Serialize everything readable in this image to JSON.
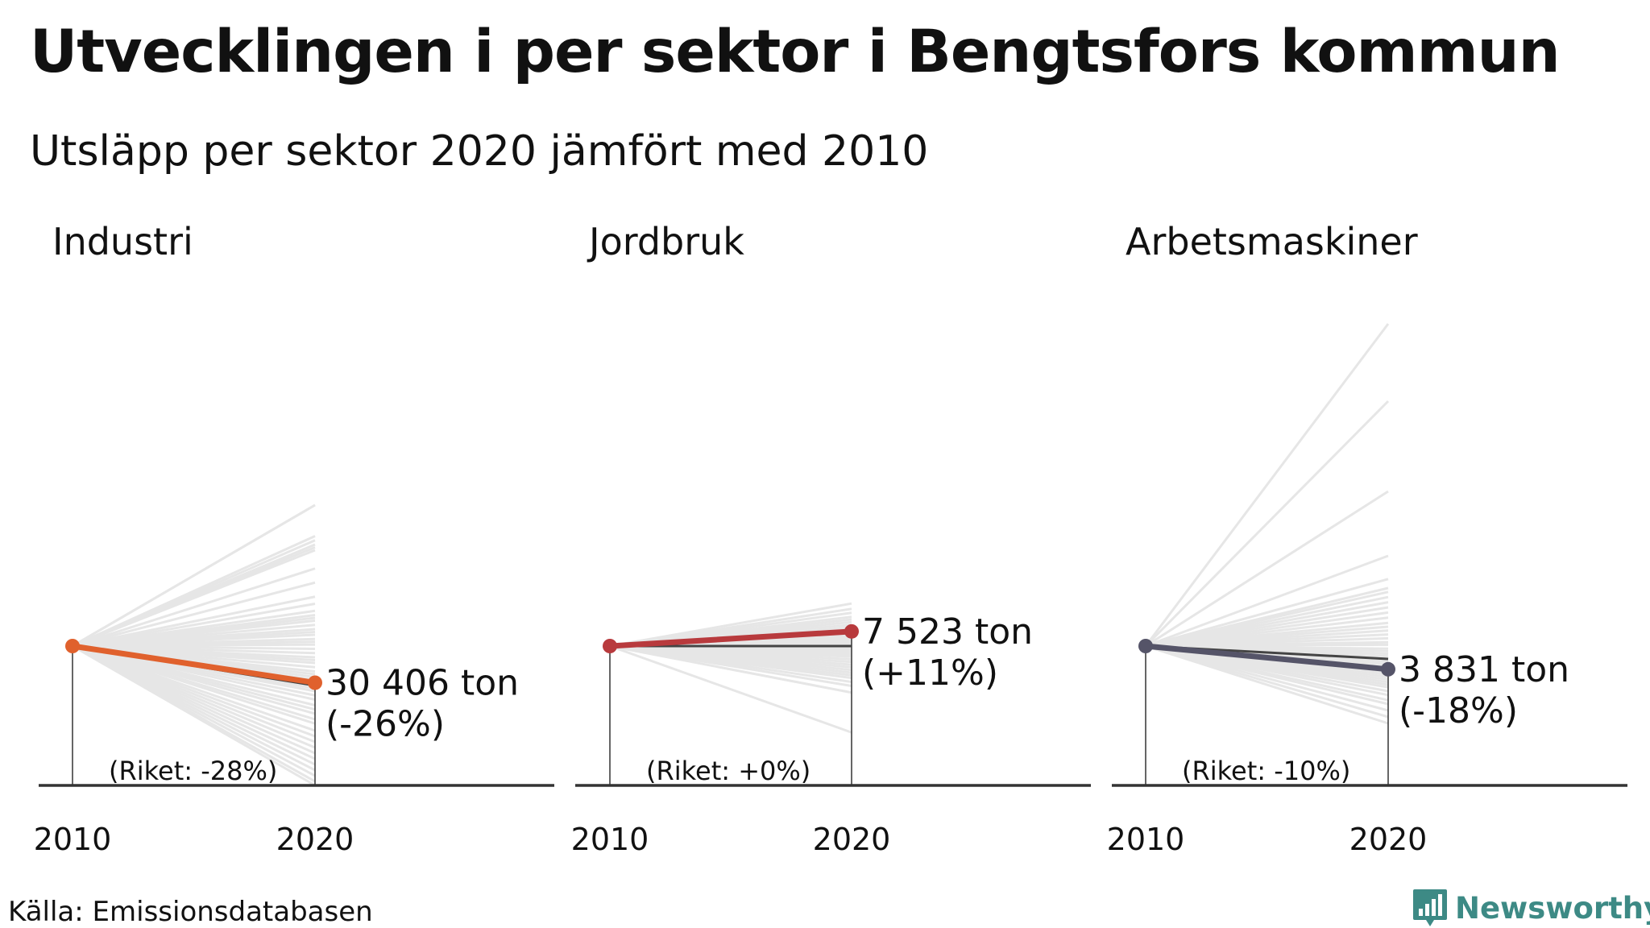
{
  "title": "Utvecklingen i per sektor i Bengtsfors kommun",
  "subtitle": "Utsläpp per sektor 2020 jämfört med 2010",
  "source": "Källa: Emissionsdatabasen",
  "brand": {
    "name": "Newsworthy",
    "color": "#3d8a85",
    "icon": "newsworthy-bar-chart-icon"
  },
  "colors": {
    "background_lines": "#e6e6e6",
    "reference_line": "#444444",
    "axis": "#333333"
  },
  "chart_data": [
    {
      "type": "line",
      "title": "Industri",
      "x": [
        "2010",
        "2020"
      ],
      "highlight": {
        "change_pct": -26,
        "value_label": "30 406 ton",
        "change_label": "(-26%)",
        "color": "#e0612d"
      },
      "national": {
        "change_pct": -28,
        "label": "(Riket: -28%)"
      },
      "other_municipalities_change_pct": [
        100,
        100,
        78,
        75,
        72,
        70,
        68,
        55,
        45,
        35,
        30,
        25,
        22,
        20,
        18,
        15,
        12,
        10,
        8,
        5,
        3,
        1,
        -2,
        -5,
        -8,
        -10,
        -12,
        -15,
        -18,
        -20,
        -22,
        -24,
        -27,
        -30,
        -32,
        -35,
        -38,
        -42,
        -45,
        -48,
        -52,
        -55,
        -60,
        -64,
        -68,
        -72,
        -76,
        -80,
        -84,
        -88,
        -92,
        -96,
        -100
      ]
    },
    {
      "type": "line",
      "title": "Jordbruk",
      "x": [
        "2010",
        "2020"
      ],
      "highlight": {
        "change_pct": 11,
        "value_label": "7 523 ton",
        "change_label": "(+11%)",
        "color": "#b83a3d"
      },
      "national": {
        "change_pct": 0,
        "label": "(Riket: +0%)"
      },
      "other_municipalities_change_pct": [
        32,
        28,
        25,
        22,
        20,
        18,
        16,
        14,
        12,
        10,
        8,
        7,
        6,
        5,
        4,
        3,
        2,
        1,
        0,
        -1,
        -2,
        -3,
        -4,
        -5,
        -6,
        -7,
        -8,
        -10,
        -12,
        -14,
        -16,
        -18,
        -20,
        -22,
        -24,
        -27,
        -30,
        -35,
        -65
      ]
    },
    {
      "type": "line",
      "title": "Arbetsmaskiner",
      "x": [
        "2010",
        "2020"
      ],
      "highlight": {
        "change_pct": -18,
        "value_label": "3 831 ton",
        "change_label": "(-18%)",
        "color": "#555468"
      },
      "national": {
        "change_pct": -10,
        "label": "(Riket: -10%)"
      },
      "other_municipalities_change_pct": [
        250,
        190,
        120,
        70,
        52,
        45,
        42,
        38,
        34,
        30,
        26,
        22,
        18,
        15,
        12,
        9,
        6,
        3,
        1,
        -2,
        -4,
        -6,
        -8,
        -10,
        -12,
        -14,
        -16,
        -18,
        -20,
        -22,
        -24,
        -26,
        -28,
        -30,
        -32,
        -35,
        -38,
        -42,
        -45,
        -50,
        -55,
        -60
      ]
    }
  ]
}
